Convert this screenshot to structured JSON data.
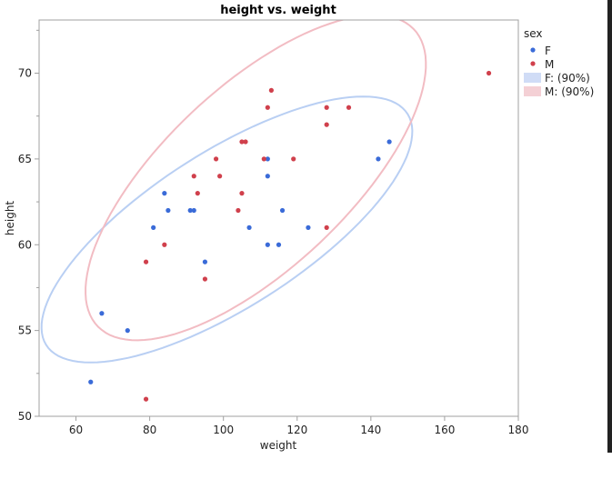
{
  "chart_data": {
    "type": "scatter",
    "title": "height vs. weight",
    "xlabel": "weight",
    "ylabel": "height",
    "xlim": [
      50,
      180
    ],
    "ylim": [
      50,
      73.1
    ],
    "xticks": [
      60,
      80,
      100,
      120,
      140,
      160,
      180
    ],
    "yticks": [
      50,
      55,
      60,
      65,
      70
    ],
    "grid": false,
    "legend": {
      "title": "sex",
      "placement": "right",
      "entries": [
        "F",
        "M",
        "F: (90%)",
        "M: (90%)"
      ]
    },
    "density_ellipse_level": 0.9,
    "series": [
      {
        "name": "F",
        "color": "#3a6bd8",
        "ellipse_color": "#b9cff3",
        "points": [
          [
            64,
            52
          ],
          [
            67,
            56
          ],
          [
            74,
            55
          ],
          [
            81,
            61
          ],
          [
            84,
            63
          ],
          [
            85,
            62
          ],
          [
            91,
            62
          ],
          [
            92,
            62
          ],
          [
            95,
            59
          ],
          [
            107,
            61
          ],
          [
            112,
            60
          ],
          [
            115,
            60
          ],
          [
            112,
            65
          ],
          [
            112,
            64
          ],
          [
            116,
            62
          ],
          [
            123,
            61
          ],
          [
            142,
            65
          ],
          [
            145,
            66
          ]
        ]
      },
      {
        "name": "M",
        "color": "#d0404c",
        "ellipse_color": "#f2bcc3",
        "points": [
          [
            113,
            69
          ],
          [
            112,
            68
          ],
          [
            105,
            66
          ],
          [
            106,
            66
          ],
          [
            98,
            65
          ],
          [
            111,
            65
          ],
          [
            119,
            65
          ],
          [
            92,
            64
          ],
          [
            99,
            64
          ],
          [
            93,
            63
          ],
          [
            105,
            63
          ],
          [
            104,
            62
          ],
          [
            84,
            60
          ],
          [
            79,
            59
          ],
          [
            95,
            58
          ],
          [
            79,
            51
          ],
          [
            128,
            68
          ],
          [
            134,
            68
          ],
          [
            128,
            67
          ],
          [
            172,
            70
          ],
          [
            128,
            61
          ]
        ]
      }
    ]
  }
}
